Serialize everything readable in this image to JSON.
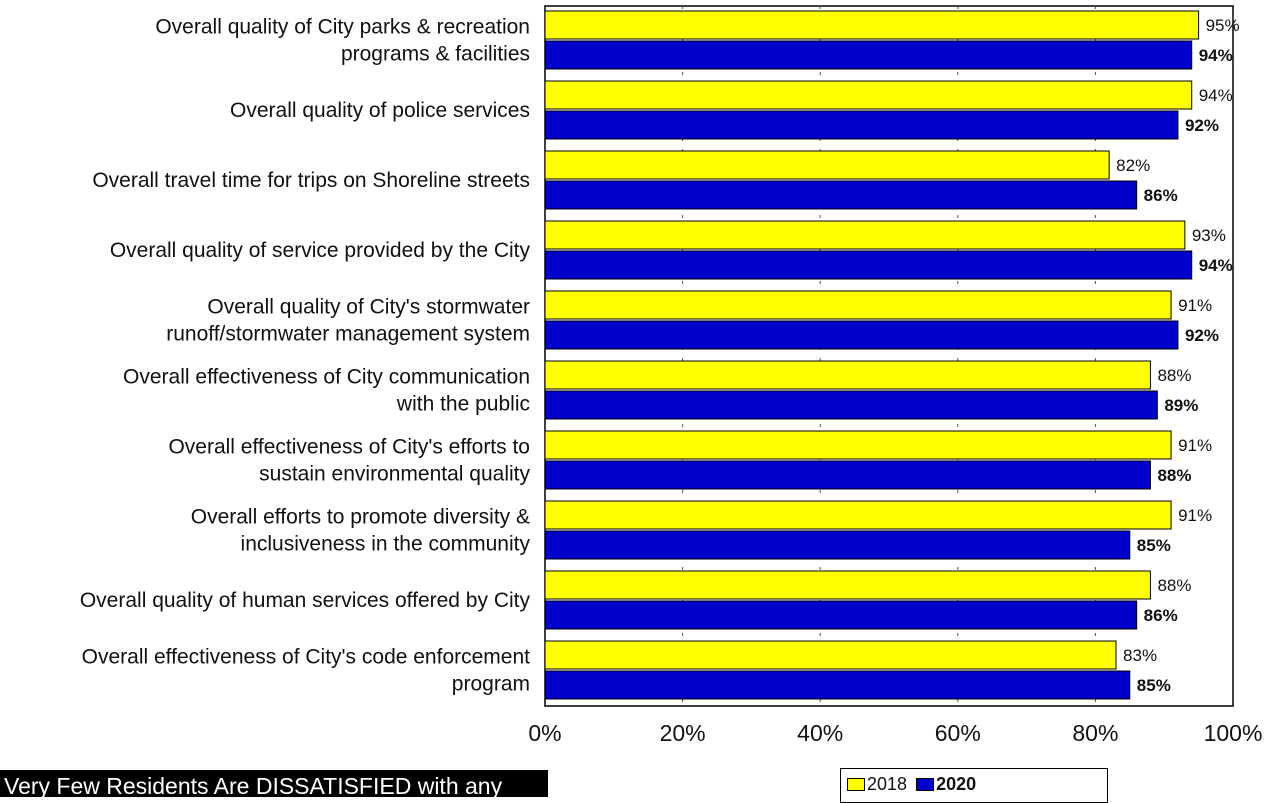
{
  "chart_data": {
    "type": "bar",
    "orientation": "horizontal",
    "categories": [
      [
        "Overall quality of City parks & recreation",
        "programs & facilities"
      ],
      [
        "Overall quality of police services"
      ],
      [
        "Overall travel time for trips on Shoreline streets"
      ],
      [
        "Overall quality of service provided by the City"
      ],
      [
        "Overall quality of City's stormwater",
        "runoff/stormwater management system"
      ],
      [
        "Overall effectiveness of City communication",
        "with the public"
      ],
      [
        "Overall effectiveness of City's efforts to",
        "sustain environmental quality"
      ],
      [
        "Overall efforts to promote diversity &",
        "inclusiveness in the community"
      ],
      [
        "Overall quality of human services offered by City"
      ],
      [
        "Overall effectiveness of City's code enforcement",
        "program"
      ]
    ],
    "series": [
      {
        "name": "2018",
        "color": "#ffff00",
        "values": [
          95,
          94,
          82,
          93,
          91,
          88,
          91,
          91,
          88,
          83
        ],
        "labels": [
          "95%",
          "94%",
          "82%",
          "93%",
          "91%",
          "88%",
          "91%",
          "91%",
          "88%",
          "83%"
        ]
      },
      {
        "name": "2020",
        "color": "#0000cc",
        "values": [
          94,
          92,
          86,
          94,
          92,
          89,
          88,
          85,
          86,
          85
        ],
        "labels": [
          "94%",
          "92%",
          "86%",
          "94%",
          "92%",
          "89%",
          "88%",
          "85%",
          "86%",
          "85%"
        ]
      }
    ],
    "xlim": [
      0,
      100
    ],
    "x_ticks": [
      "0%",
      "20%",
      "40%",
      "60%",
      "80%",
      "100%"
    ],
    "grid": true,
    "legend": "bottom-right"
  },
  "banner_text": "Very Few Residents Are DISSATISFIED with any",
  "legend": {
    "items": [
      {
        "label": "2018",
        "color": "#ffff00"
      },
      {
        "label": "2020",
        "color": "#0000cc"
      }
    ]
  }
}
